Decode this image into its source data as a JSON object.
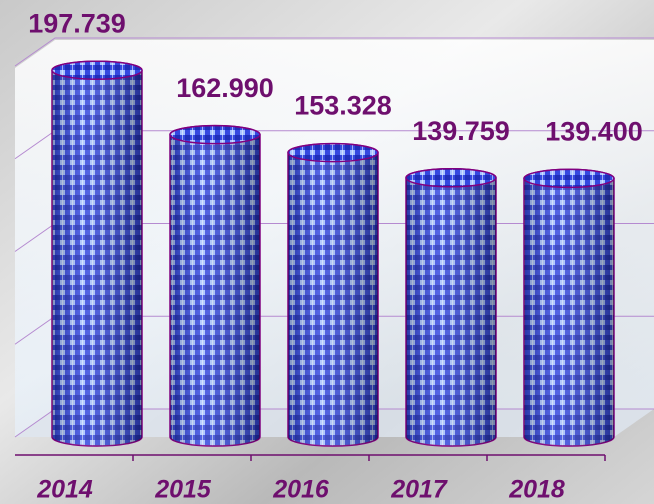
{
  "chart_data": {
    "type": "bar",
    "categories": [
      "2014",
      "2015",
      "2016",
      "2017",
      "2018"
    ],
    "values": [
      197.739,
      162.99,
      153.328,
      139.759,
      139.4
    ],
    "value_labels": [
      "197.739",
      "162.990",
      "153.328",
      "139.759",
      "139.400"
    ],
    "color": "#3548e0",
    "ylim": [
      0,
      200
    ],
    "yticks": [
      0,
      50,
      100,
      150,
      200
    ],
    "grid": true
  }
}
